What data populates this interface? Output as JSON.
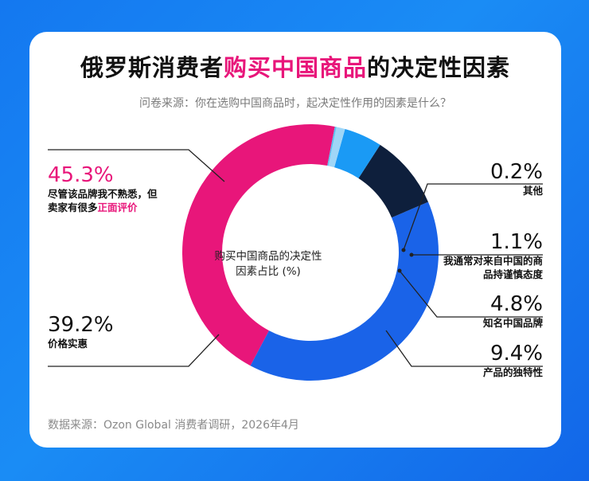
{
  "title_part1": "俄罗斯消费者",
  "title_highlight": "购买中国商品",
  "title_part2": "的决定性因素",
  "subtitle": "问卷来源：你在选购中国商品时，起决定性作用的因素是什么？",
  "source": "数据来源：Ozon Global 消费者调研，2026年4月",
  "center_line1": "购买中国商品的决定性",
  "center_line2": "因素占比 (%)",
  "labels": {
    "s0_pct": "45.3%",
    "s0_line1": "尽管该品牌我不熟悉，但",
    "s0_line2a": "卖家有很多",
    "s0_line2b": "正面评价",
    "s1_pct": "39.2%",
    "s1_line1": "价格实惠",
    "s2_pct": "9.4%",
    "s2_line1": "产品的独特性",
    "s3_pct": "4.8%",
    "s3_line1": "知名中国品牌",
    "s4_pct": "1.1%",
    "s4_line1": "我通常对来自中国的商",
    "s4_line2": "品持谨慎态度",
    "s5_pct": "0.2%",
    "s5_line1": "其他"
  },
  "chart_data": {
    "type": "pie",
    "donut": true,
    "title": "俄罗斯消费者购买中国商品的决定性因素",
    "center_label": "购买中国商品的决定性因素占比 (%)",
    "start_angle_deg": 79,
    "direction": "counterclockwise",
    "slices": [
      {
        "label": "尽管该品牌我不熟悉，但卖家有很多正面评价",
        "value": 45.3,
        "color": "#e8167a"
      },
      {
        "label": "价格实惠",
        "value": 39.2,
        "color": "#1a63e8"
      },
      {
        "label": "产品的独特性",
        "value": 9.4,
        "color": "#0e1f3c"
      },
      {
        "label": "知名中国品牌",
        "value": 4.8,
        "color": "#1a9af5"
      },
      {
        "label": "我通常对来自中国的商品持谨慎态度",
        "value": 1.1,
        "color": "#9fd6f7"
      },
      {
        "label": "其他",
        "value": 0.2,
        "color": "#5cc0f0"
      }
    ]
  },
  "colors": {
    "accent_pink": "#e8167a",
    "background_blue": "#1478f0",
    "leader_line": "#222222"
  }
}
